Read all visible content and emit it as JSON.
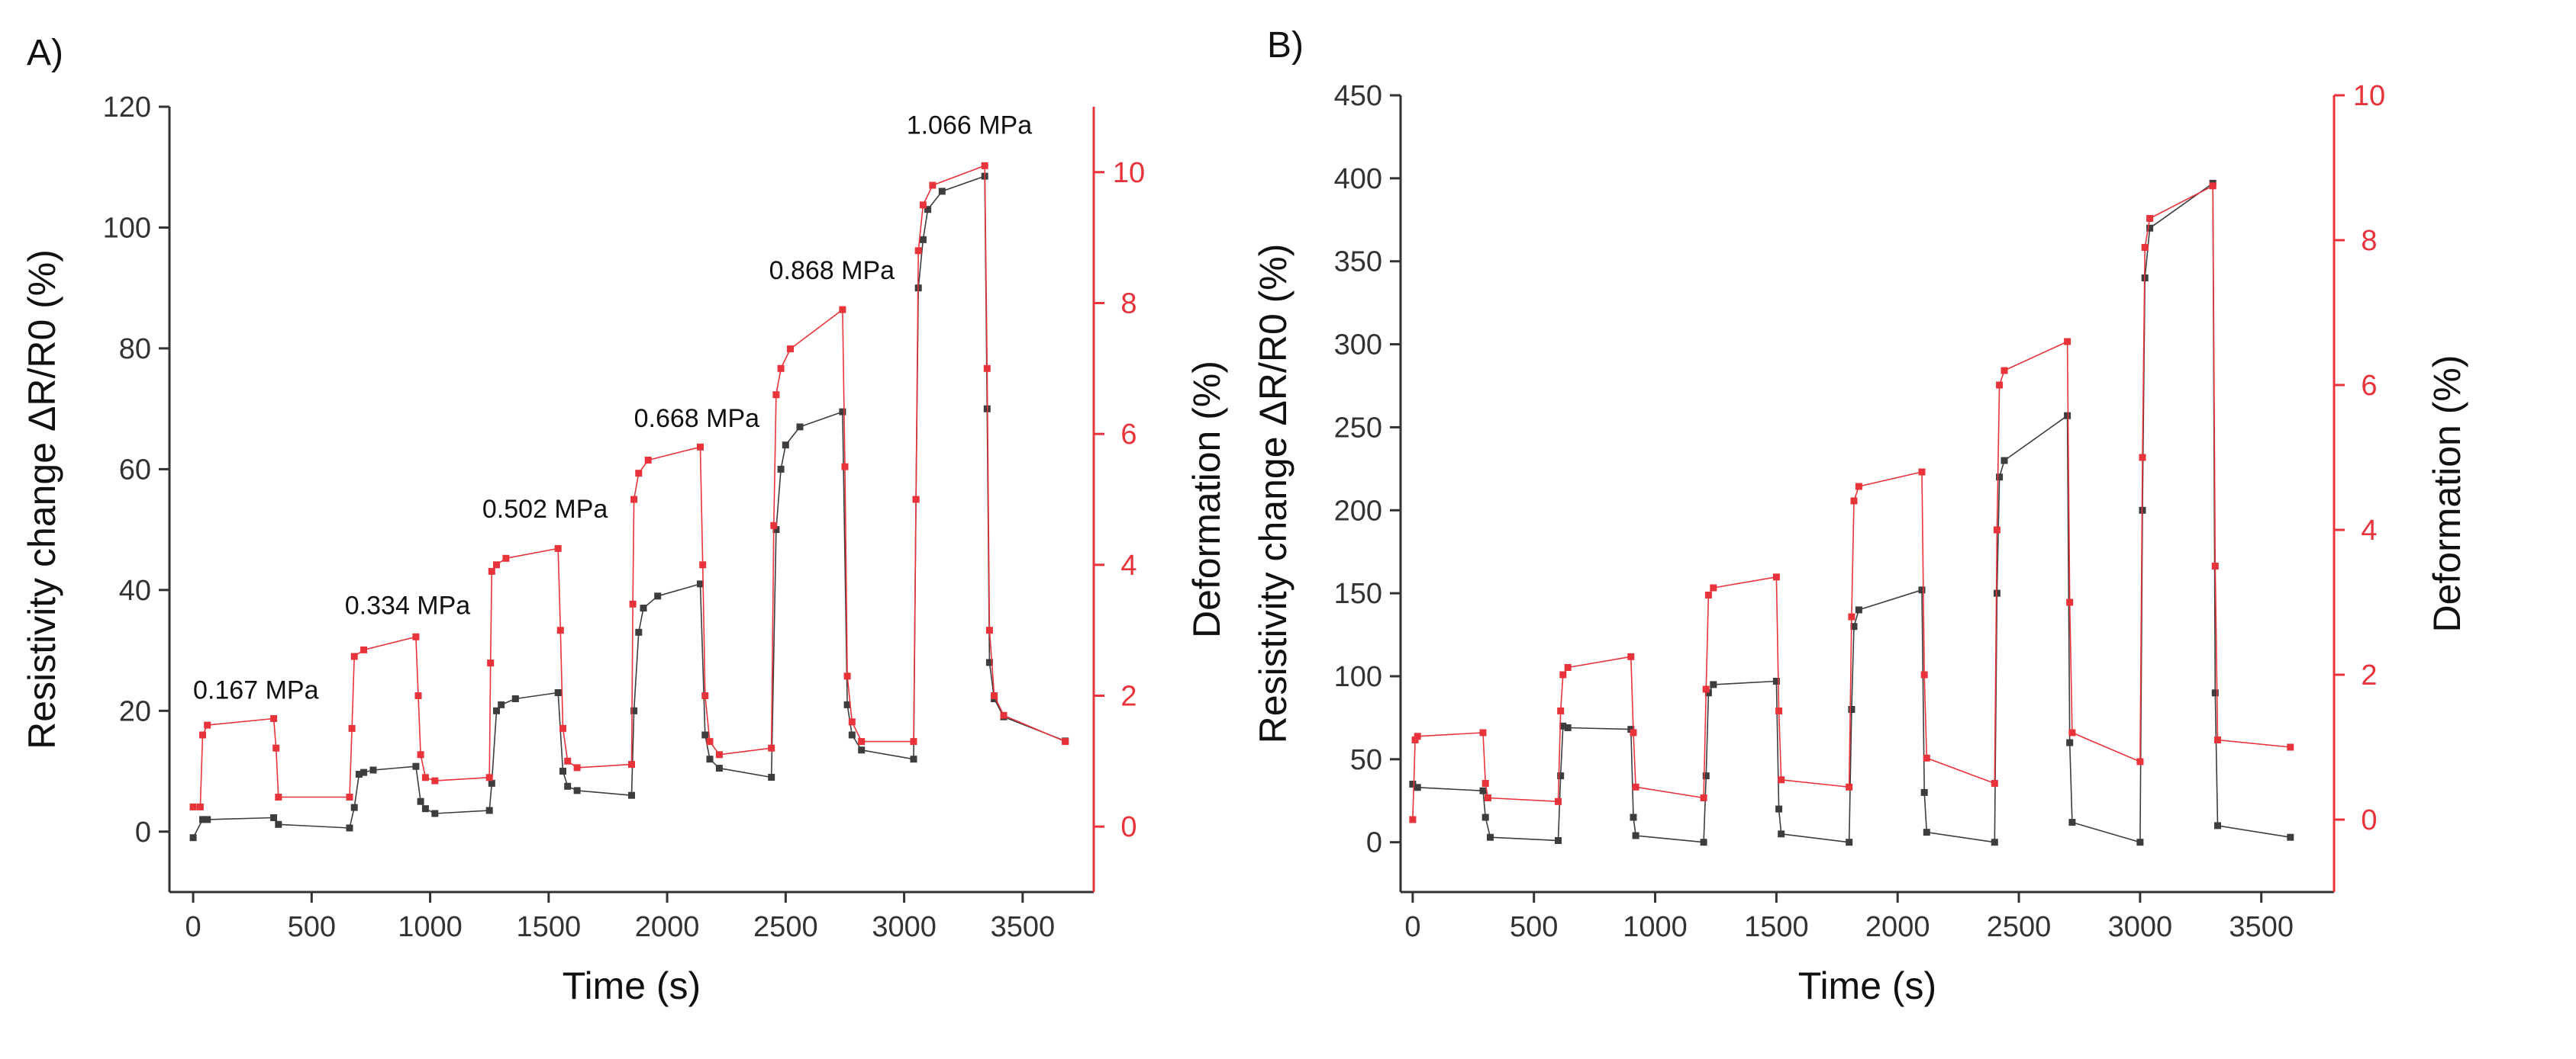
{
  "chart_data": [
    {
      "panel": "A)",
      "type": "line",
      "xlabel": "Time (s)",
      "ylabel": "Resistivity change ΔR/R0 (%)",
      "ylabel2": "Deformation (%)",
      "xlim": [
        -100,
        3800
      ],
      "ylim": [
        -10,
        120
      ],
      "y2lim": [
        -1.0,
        11.0
      ],
      "xticks": [
        0,
        500,
        1000,
        1500,
        2000,
        2500,
        3000,
        3500
      ],
      "yticks": [
        0,
        20,
        40,
        60,
        80,
        100,
        120
      ],
      "y2ticks": [
        0,
        2,
        4,
        6,
        8,
        10
      ],
      "colors": {
        "resistivity": "#3d3d3d",
        "deformation": "#e8333a"
      },
      "series": [
        {
          "name": "Resistivity change",
          "axis": "left",
          "x": [
            0,
            40,
            60,
            340,
            360,
            660,
            680,
            700,
            720,
            760,
            940,
            960,
            980,
            1020,
            1250,
            1260,
            1280,
            1300,
            1360,
            1540,
            1560,
            1580,
            1620,
            1850,
            1860,
            1880,
            1900,
            1960,
            2140,
            2160,
            2180,
            2220,
            2440,
            2460,
            2480,
            2500,
            2560,
            2740,
            2760,
            2780,
            2820,
            3040,
            3050,
            3060,
            3080,
            3100,
            3160,
            3340,
            3350,
            3360,
            3380,
            3420,
            3680
          ],
          "y": [
            -1,
            2,
            2,
            2.3,
            1.2,
            0.6,
            4,
            9.5,
            9.8,
            10.2,
            10.8,
            5,
            3.8,
            3,
            3.5,
            8,
            20,
            21,
            22,
            23,
            10,
            7.5,
            6.8,
            6,
            20,
            33,
            37,
            39,
            41,
            16,
            12,
            10.5,
            9,
            50,
            60,
            64,
            67,
            69.5,
            21,
            16,
            13.5,
            12,
            55,
            90,
            98,
            103,
            106,
            108.5,
            70,
            28,
            22,
            19,
            15
          ]
        },
        {
          "name": "Deformation",
          "axis": "right",
          "x": [
            0,
            30,
            40,
            60,
            340,
            350,
            360,
            660,
            670,
            680,
            720,
            940,
            950,
            960,
            980,
            1020,
            1250,
            1255,
            1260,
            1280,
            1320,
            1540,
            1550,
            1560,
            1580,
            1620,
            1850,
            1855,
            1860,
            1880,
            1920,
            2140,
            2150,
            2160,
            2180,
            2220,
            2440,
            2450,
            2460,
            2480,
            2520,
            2740,
            2750,
            2760,
            2780,
            2820,
            3040,
            3050,
            3060,
            3080,
            3120,
            3340,
            3350,
            3360,
            3380,
            3420,
            3680
          ],
          "y": [
            0.3,
            0.3,
            1.4,
            1.55,
            1.65,
            1.2,
            0.45,
            0.45,
            1.5,
            2.6,
            2.7,
            2.9,
            2.0,
            1.1,
            0.75,
            0.7,
            0.75,
            2.5,
            3.9,
            4.0,
            4.1,
            4.25,
            3.0,
            1.5,
            1.0,
            0.9,
            0.95,
            3.4,
            5.0,
            5.4,
            5.6,
            5.8,
            4.0,
            2.0,
            1.3,
            1.1,
            1.2,
            4.6,
            6.6,
            7.0,
            7.3,
            7.9,
            5.5,
            2.3,
            1.6,
            1.3,
            1.3,
            5.0,
            8.8,
            9.5,
            9.8,
            10.1,
            7.0,
            3.0,
            2.0,
            1.7,
            1.3
          ]
        }
      ],
      "annotations": [
        {
          "text": "0.167 MPa",
          "x": 0,
          "y": 22
        },
        {
          "text": "0.334 MPa",
          "x": 640,
          "y": 36
        },
        {
          "text": "0.502 MPa",
          "x": 1220,
          "y": 52
        },
        {
          "text": "0.668 MPa",
          "x": 1860,
          "y": 67
        },
        {
          "text": "0.868 MPa",
          "x": 2430,
          "y": 91.5
        },
        {
          "text": "1.066 MPa",
          "x": 3010,
          "y": 115.5
        }
      ]
    },
    {
      "panel": "B)",
      "type": "line",
      "xlabel": "Time (s)",
      "ylabel": "Resistivity change ΔR/R0 (%)",
      "ylabel2": "Deformation (%)",
      "xlim": [
        -50,
        3800
      ],
      "ylim": [
        -30,
        450
      ],
      "y2lim": [
        -1.0,
        10.0
      ],
      "xticks": [
        0,
        500,
        1000,
        1500,
        2000,
        2500,
        3000,
        3500
      ],
      "yticks": [
        0,
        50,
        100,
        150,
        200,
        250,
        300,
        350,
        400,
        450
      ],
      "y2ticks": [
        0,
        2,
        4,
        6,
        8,
        10
      ],
      "colors": {
        "resistivity": "#3d3d3d",
        "deformation": "#e8333a"
      },
      "series": [
        {
          "name": "Resistivity change",
          "axis": "left",
          "x": [
            0,
            20,
            290,
            300,
            320,
            600,
            610,
            620,
            640,
            900,
            910,
            920,
            1200,
            1210,
            1220,
            1240,
            1500,
            1510,
            1520,
            1800,
            1810,
            1820,
            1840,
            2100,
            2110,
            2120,
            2400,
            2410,
            2420,
            2440,
            2700,
            2710,
            2720,
            3000,
            3010,
            3020,
            3040,
            3300,
            3310,
            3320,
            3620
          ],
          "y": [
            35,
            33,
            31,
            15,
            3,
            1,
            40,
            70,
            69,
            68,
            15,
            4,
            0,
            40,
            90,
            95,
            97,
            20,
            5,
            0,
            80,
            130,
            140,
            152,
            30,
            6,
            0,
            150,
            220,
            230,
            257,
            60,
            12,
            0,
            200,
            340,
            370,
            397,
            90,
            10,
            3
          ]
        },
        {
          "name": "Deformation",
          "axis": "right",
          "x": [
            0,
            10,
            20,
            290,
            300,
            310,
            600,
            610,
            620,
            640,
            900,
            910,
            920,
            1200,
            1210,
            1220,
            1240,
            1500,
            1510,
            1520,
            1800,
            1810,
            1820,
            1840,
            2100,
            2110,
            2120,
            2400,
            2410,
            2420,
            2440,
            2700,
            2710,
            2720,
            3000,
            3010,
            3020,
            3040,
            3300,
            3310,
            3320,
            3620
          ],
          "y": [
            0.0,
            1.1,
            1.15,
            1.2,
            0.5,
            0.3,
            0.25,
            1.5,
            2.0,
            2.1,
            2.25,
            1.2,
            0.45,
            0.3,
            1.8,
            3.1,
            3.2,
            3.35,
            1.5,
            0.55,
            0.45,
            2.8,
            4.4,
            4.6,
            4.8,
            2.0,
            0.85,
            0.5,
            4.0,
            6.0,
            6.2,
            6.6,
            3.0,
            1.2,
            0.8,
            5.0,
            7.9,
            8.3,
            8.75,
            3.5,
            1.1,
            1.0
          ]
        }
      ],
      "annotations": []
    }
  ]
}
